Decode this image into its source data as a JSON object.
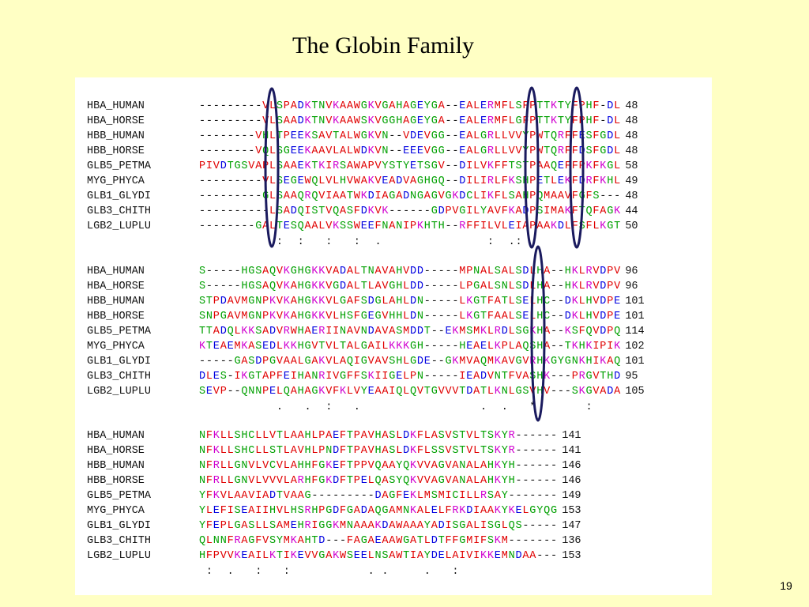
{
  "header": {
    "title": "The Globin Family"
  },
  "alignment": {
    "blocks": [
      {
        "rows": [
          {
            "name": "HBA_HUMAN",
            "sequence": "---------VLSPADKTNVKAAWGKVGAHAGEYGA--EALERMFLSFPTTKTYFPHF-DL",
            "position": "48"
          },
          {
            "name": "HBA_HORSE",
            "sequence": "---------VLSAADKTNVKAAWSKVGGHAGEYGA--EALERMFLGFPTTKTYFPHF-DL",
            "position": "48"
          },
          {
            "name": "HBB_HUMAN",
            "sequence": "--------VHLTPEEKSAVTALWGKVN--VDEVGG--EALGRLLVVYPWTQRFFESFGDL",
            "position": "48"
          },
          {
            "name": "HBB_HORSE",
            "sequence": "--------VQLSGEEKAAVLALWDKVN--EEEVGG--EALGRLLVVYPWTQRFFDSFGDL",
            "position": "48"
          },
          {
            "name": "GLB5_PETMA",
            "sequence": "PIVDTGSVAPLSAAEKTKIRSAWAPVYSTYETSGV--DILVKFFTSTPAAQEFFPKFKGL",
            "position": "58"
          },
          {
            "name": "MYG_PHYCA",
            "sequence": "---------VLSEGEWQLVLHVWAKVEADVAGHGQ--DILIRLFKSHPETLEKFDRFKHL",
            "position": "49"
          },
          {
            "name": "GLB1_GLYDI",
            "sequence": "---------GLSAAQRQVIAATWKDIAGADNGAGVGKDCLIKFLSAHPQMAAVFGFS---",
            "position": "48"
          },
          {
            "name": "GLB3_CHITH",
            "sequence": "----------LSADQISTVQASFDKVK------GDPVGILYAVFKADPSIMAKFTQFAGK",
            "position": "44"
          },
          {
            "name": "LGB2_LUPLU",
            "sequence": "--------GALTESQAALVKSSWEEFNANIPKHTH--RFFILVLEIAPAAKDLFSFLKGT",
            "position": "50"
          }
        ],
        "conservation": "           :  :   :   :  .               :  .:"
      },
      {
        "rows": [
          {
            "name": "HBA_HUMAN",
            "sequence": "S-----HGSAQVKGHGKKVADALTNAVAHVDD-----MPNALSALSDLHA--HKLRVDPV",
            "position": "96"
          },
          {
            "name": "HBA_HORSE",
            "sequence": "S-----HGSAQVKAHGKKVGDALTLAVGHLDD-----LPGALSNLSDLHA--HKLRVDPV",
            "position": "96"
          },
          {
            "name": "HBB_HUMAN",
            "sequence": "STPDAVMGNPKVKAHGKKVLGAFSDGLAHLDN-----LKGTFATLSELHC--DKLHVDPE",
            "position": "101"
          },
          {
            "name": "HBB_HORSE",
            "sequence": "SNPGAVMGNPKVKAHGKKVLHSFGEGVHHLDN-----LKGTFAALSELHC--DKLHVDPE",
            "position": "101"
          },
          {
            "name": "GLB5_PETMA",
            "sequence": "TTADQLKKSADVRWHAERIINAVNDAVASMDDT--EKMSMKLRDLSGKHA--KSFQVDPQ",
            "position": "114"
          },
          {
            "name": "MYG_PHYCA",
            "sequence": "KTEAEMKASEDLKKHGVTVLTALGAILKKKGH-----HEAELKPLAQSHA--TKHKIPIK",
            "position": "102"
          },
          {
            "name": "GLB1_GLYDI",
            "sequence": "-----GASDPGVAALGAKVLAQIGVAVSHLGDE--GKMVAQMKAVGVRHKGYGNKHIKAQ",
            "position": "101"
          },
          {
            "name": "GLB3_CHITH",
            "sequence": "DLES-IKGTAPFEIHANRIVGFFSKIIGELPN-----IEADVNTFVASHK---PRGVTHD",
            "position": "95"
          },
          {
            "name": "LGB2_LUPLU",
            "sequence": "SEVP--QNNPELQAHAGKVFKLVYEAAIQLQVTGVVVTDATLKNLGSVHV---SKGVADA",
            "position": "105"
          }
        ],
        "conservation": "           .   .  :   .                 .  .   *       :"
      },
      {
        "rows": [
          {
            "name": "HBA_HUMAN",
            "sequence": "NFKLLSHCLLVTLAAHLPAEFTPAVHASLDKFLASVSTVLTSKYR------",
            "position": "141"
          },
          {
            "name": "HBA_HORSE",
            "sequence": "NFKLLSHCLLSTLAVHLPNDFTPAVHASLDKFLSSVSTVLTSKYR------",
            "position": "141"
          },
          {
            "name": "HBB_HUMAN",
            "sequence": "NFRLLGNVLVCVLAHHFGKEFTPPVQAAYQKVVAGVANALAHKYH------",
            "position": "146"
          },
          {
            "name": "HBB_HORSE",
            "sequence": "NFRLLGNVLVVVLARHFGKDFTPELQASYQKVVAGVANALAHKYH------",
            "position": "146"
          },
          {
            "name": "GLB5_PETMA",
            "sequence": "YFKVLAAVIADTVAAG---------DAGFEKLMSMICILLRSAY-------",
            "position": "149"
          },
          {
            "name": "MYG_PHYCA",
            "sequence": "YLEFISEAIIHVLHSRHPGDFGADAQGAMNKALELFRKDIAAKYKELGYQG",
            "position": "153"
          },
          {
            "name": "GLB1_GLYDI",
            "sequence": "YFEPLGASLLSAMEHRIGGKMNAAAKDAWAAAYADISGALISGLQS-----",
            "position": "147"
          },
          {
            "name": "GLB3_CHITH",
            "sequence": "QLNNFRAGFVSYMKAHTD---FAGAEAAWGATLDTFFGMIFSKM-------",
            "position": "136"
          },
          {
            "name": "LGB2_LUPLU",
            "sequence": "HFPVVKEAILKTIKEVVGAKWSEELNSAWTIAYDELAIVIKKEMNDAA---",
            "position": "153"
          }
        ],
        "conservation": " :  .   :   :           . .     .   :"
      }
    ]
  },
  "footer": {
    "page_number": "19"
  }
}
